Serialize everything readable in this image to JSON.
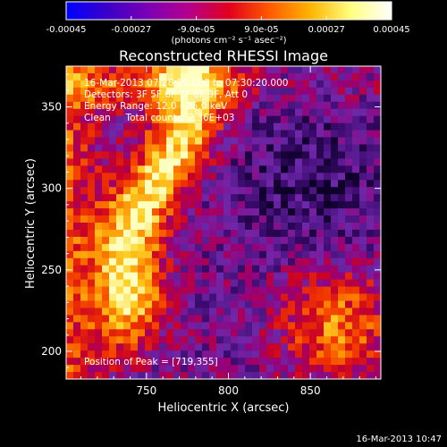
{
  "chart_data": {
    "type": "heatmap",
    "title": "Reconstructed RHESSI Image",
    "xlabel": "Heliocentric X (arcsec)",
    "ylabel": "Heliocentric Y (arcsec)",
    "xlim": [
      701,
      893
    ],
    "ylim": [
      183,
      375
    ],
    "x_ticks": [
      750,
      800,
      850
    ],
    "y_ticks": [
      200,
      250,
      300,
      350
    ],
    "x_tick_labels": [
      "750",
      "800",
      "850"
    ],
    "y_tick_labels": [
      "200",
      "250",
      "300",
      "350"
    ],
    "colorbar": {
      "min": -0.00045,
      "max": 0.00045,
      "tick_values": [
        -0.00045,
        -0.00027,
        -9e-05,
        9e-05,
        0.00027,
        0.00045
      ],
      "tick_labels": [
        "-0.00045",
        "-0.00027",
        "-9.0e-05",
        "9.0e-05",
        "0.00027",
        "0.00045"
      ],
      "unit_label": "(photons cm⁻² s⁻¹ asec⁻²)",
      "colors": [
        "#0000ff",
        "#3a00c8",
        "#7a00b4",
        "#b4008c",
        "#e2001c",
        "#ff5a00",
        "#ffb400",
        "#ffff80",
        "#ffffff"
      ]
    },
    "annotations": [
      "16-Mar-2013 07:28:20.000 to 07:30:20.000",
      "Detectors: 3F 5F 6F 7F 8F 9F, Att 0",
      "Energy Range: 12.0 - 25.0 keV",
      "Clean     Total counts: 2.36E+03"
    ],
    "peak_label": "Position of Peak = [719,355]",
    "grid": false
  },
  "footer_timestamp": "16-Mar-2013 10:47"
}
